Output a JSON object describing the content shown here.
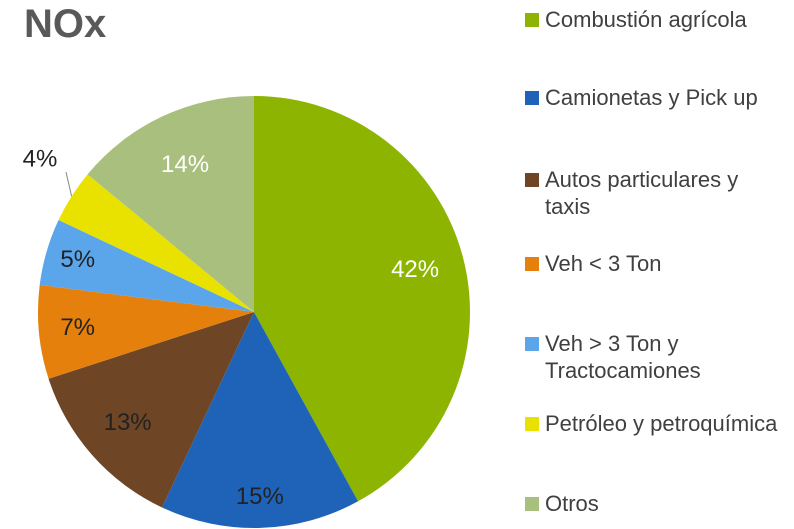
{
  "chart_data": {
    "type": "pie",
    "title": "NOx",
    "categories": [
      "Combustión agrícola",
      "Camionetas y Pick up",
      "Autos particulares y taxis",
      "Veh < 3 Ton",
      "Veh > 3 Ton y Tractocamiones",
      "Petróleo y petroquímica",
      "Otros"
    ],
    "values": [
      42,
      15,
      13,
      7,
      5,
      4,
      14
    ],
    "value_labels": [
      "42%",
      "15%",
      "13%",
      "7%",
      "5%",
      "4%",
      "14%"
    ],
    "colors": [
      "#8cb400",
      "#1f63b8",
      "#6e4626",
      "#e5800c",
      "#5ba5ea",
      "#e9e200",
      "#a9bf7e"
    ]
  }
}
